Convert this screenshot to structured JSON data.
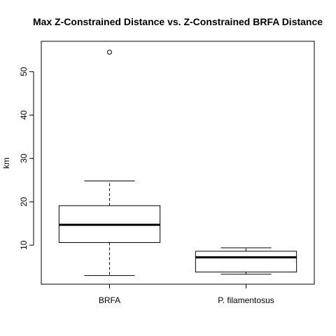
{
  "chart_data": {
    "type": "boxplot",
    "title": "Max Z-Constrained Distance vs. Z-Constrained BRFA Distance",
    "xlabel": "",
    "ylabel": "km",
    "ylim": [
      1.0,
      57.0
    ],
    "yticks": [
      10,
      20,
      30,
      40,
      50
    ],
    "grid": false,
    "categories": [
      "BRFA",
      "P. filamentosus"
    ],
    "boxes": [
      {
        "name": "BRFA",
        "whisker_low": 3.0,
        "q1": 10.6,
        "median": 14.7,
        "q3": 19.1,
        "whisker_high": 24.8,
        "outliers": [
          54.5
        ]
      },
      {
        "name": "P. filamentosus",
        "whisker_low": 3.3,
        "q1": 3.8,
        "median": 7.2,
        "q3": 8.6,
        "whisker_high": 9.4,
        "outliers": []
      }
    ]
  }
}
